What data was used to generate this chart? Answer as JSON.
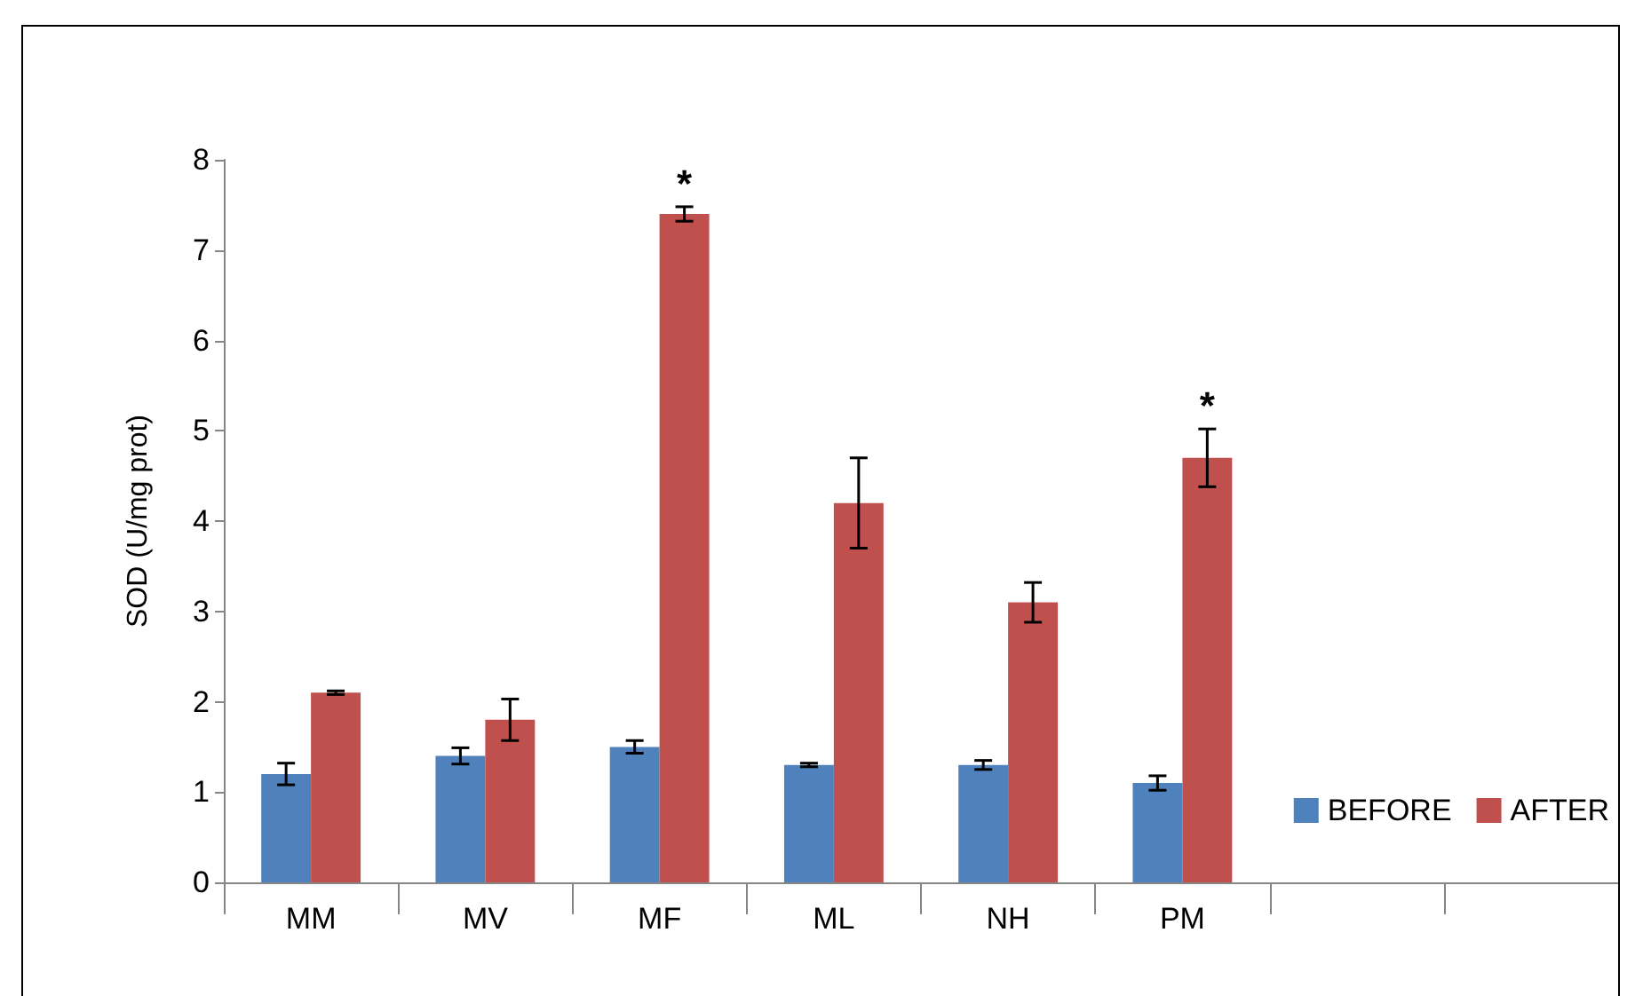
{
  "chart_data": {
    "type": "bar",
    "ylabel": "SOD (U/mg prot)",
    "categories": [
      "MM",
      "MV",
      "MF",
      "ML",
      "NH",
      "PM",
      null,
      null
    ],
    "series": [
      {
        "name": "BEFORE",
        "color": "#4f81bd",
        "values": [
          1.2,
          1.4,
          1.5,
          1.3,
          1.3,
          1.1,
          null,
          null
        ],
        "errors": [
          0.12,
          0.09,
          0.07,
          0.02,
          0.05,
          0.08,
          null,
          null
        ]
      },
      {
        "name": "AFTER",
        "color": "#c0504d",
        "values": [
          2.1,
          1.8,
          7.4,
          4.2,
          3.1,
          4.7,
          null,
          null
        ],
        "errors": [
          0.02,
          0.23,
          0.08,
          0.5,
          0.22,
          0.32,
          null,
          null
        ]
      }
    ],
    "ylim": [
      0,
      8
    ],
    "yticks": [
      0,
      1,
      2,
      3,
      4,
      5,
      6,
      7,
      8
    ],
    "grid": false,
    "legend": "right",
    "annotations": [
      {
        "text": "*",
        "x": "MF",
        "y": 7.4
      },
      {
        "text": "*",
        "x": "PM",
        "y": 4.7
      }
    ]
  }
}
